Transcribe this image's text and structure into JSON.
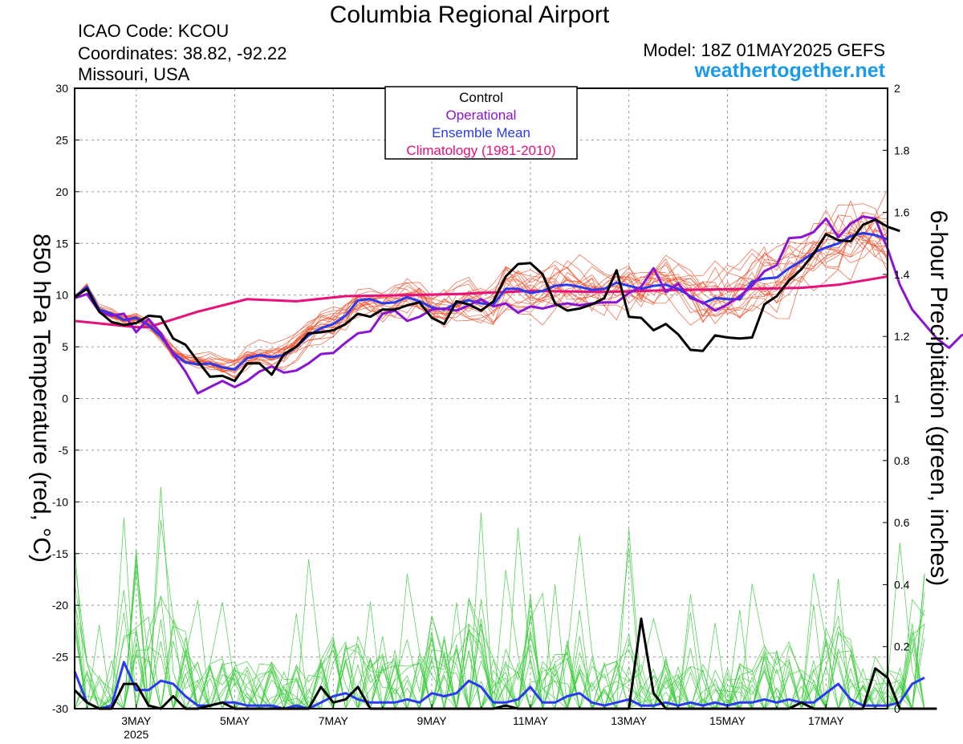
{
  "header": {
    "title": "Columbia Regional Airport",
    "icao": "ICAO Code: KCOU",
    "coordinates": "Coordinates: 38.82, -92.22",
    "region": "Missouri, USA",
    "model": "Model: 18Z 01MAY2025 GEFS",
    "website": "weathertogether.net"
  },
  "chart_data": {
    "type": "line",
    "title": "Columbia Regional Airport",
    "xlabel": "",
    "ylabel": "850 hPa Temperature (red, °C)",
    "ylabel_right": "6-hour Precipitation (green, inches)",
    "x_range_hours": [
      0,
      396
    ],
    "ylim_left": [
      -30,
      30
    ],
    "ylim_right": [
      0,
      2
    ],
    "yticks_left": [
      "30",
      "25",
      "20",
      "15",
      "10",
      "5",
      "0",
      "-5",
      "-10",
      "-15",
      "-20",
      "-25",
      "-30"
    ],
    "yticks_right": [
      "2",
      "1.8",
      "1.6",
      "1.4",
      "1.2",
      "1",
      "0.8",
      "0.6",
      "0.4",
      "0.2",
      "0"
    ],
    "xticks": [
      {
        "label": "3MAY",
        "hour": 30
      },
      {
        "label": "5MAY",
        "hour": 78
      },
      {
        "label": "7MAY",
        "hour": 126
      },
      {
        "label": "9MAY",
        "hour": 174
      },
      {
        "label": "11MAY",
        "hour": 222
      },
      {
        "label": "13MAY",
        "hour": 270
      },
      {
        "label": "15MAY",
        "hour": 318
      },
      {
        "label": "17MAY",
        "hour": 366
      }
    ],
    "year_label": "2025",
    "grid": true,
    "legend": {
      "placement": "top-center",
      "entries": [
        {
          "label": "Control",
          "color": "#000000"
        },
        {
          "label": "Operational",
          "color": "#8a14d2"
        },
        {
          "label": "Ensemble Mean",
          "color": "#2a3af0"
        },
        {
          "label": "Climatology (1981-2010)",
          "color": "#e8107a"
        }
      ]
    },
    "colors": {
      "control": "#000000",
      "operational": "#8a14d2",
      "mean": "#2a3af0",
      "climatology": "#e8107a",
      "members_temp": "#f0502a",
      "members_precip": "#3ccc3c",
      "grid": "#9a9a9a"
    },
    "temperature": {
      "hours_start": 0,
      "hours_step": 6,
      "control": [
        9.8,
        10.6,
        8.4,
        7.4,
        7.1,
        7.3,
        8.0,
        7.9,
        5.8,
        5.2,
        3.6,
        2.1,
        2.2,
        1.7,
        3.4,
        3.4,
        2.3,
        4.3,
        5.0,
        6.3,
        6.4,
        6.6,
        7.2,
        8.2,
        7.9,
        8.6,
        8.6,
        9.0,
        9.3,
        7.8,
        7.2,
        9.4,
        9.1,
        8.5,
        9.4,
        11.8,
        13.0,
        13.1,
        12.0,
        9.2,
        8.5,
        8.7,
        9.1,
        9.7,
        12.4,
        7.9,
        7.8,
        6.6,
        7.2,
        6.2,
        4.7,
        4.6,
        6.1,
        5.9,
        5.8,
        5.9,
        9.1,
        9.9,
        11.4,
        12.5,
        14.0,
        15.9,
        15.3,
        15.2,
        16.8,
        17.3,
        16.6,
        16.2
      ],
      "operational": [
        9.7,
        10.1,
        8.4,
        8.0,
        8.2,
        6.4,
        7.7,
        6.3,
        4.3,
        2.6,
        0.5,
        1.1,
        1.7,
        1.1,
        1.7,
        2.6,
        3.1,
        2.5,
        2.7,
        3.4,
        4.3,
        4.4,
        5.4,
        6.3,
        6.5,
        8.2,
        8.5,
        7.5,
        7.9,
        8.6,
        8.7,
        8.5,
        9.0,
        9.6,
        8.9,
        9.2,
        8.3,
        8.9,
        8.7,
        9.0,
        9.2,
        9.0,
        9.2,
        9.3,
        9.3,
        10.2,
        10.8,
        12.6,
        10.3,
        11.1,
        9.7,
        9.3,
        8.5,
        9.1,
        9.9,
        10.9,
        12.3,
        12.9,
        15.5,
        15.6,
        16.1,
        17.4,
        15.6,
        16.9,
        17.6,
        17.4,
        14.5,
        11.0,
        8.6,
        7.2,
        5.8,
        4.9,
        6.1,
        6.5
      ],
      "mean": [
        9.8,
        10.8,
        8.6,
        8.2,
        7.6,
        7.8,
        7.1,
        6.0,
        4.4,
        3.5,
        3.3,
        3.4,
        3.0,
        2.8,
        3.9,
        4.2,
        4.0,
        4.2,
        5.0,
        6.1,
        6.8,
        7.2,
        8.0,
        9.5,
        9.6,
        9.2,
        9.3,
        9.8,
        9.4,
        8.8,
        8.6,
        9.2,
        9.5,
        9.2,
        9.1,
        10.6,
        10.6,
        10.2,
        10.4,
        10.9,
        11.0,
        10.8,
        10.5,
        10.6,
        11.2,
        10.9,
        10.6,
        10.9,
        11.0,
        10.6,
        9.9,
        9.2,
        9.7,
        9.6,
        9.6,
        11.3,
        11.6,
        11.7,
        12.6,
        13.3,
        14.1,
        14.6,
        15.0,
        15.7,
        16.0,
        15.8,
        15.4
      ],
      "climatology": [
        [
          0,
          7.5
        ],
        [
          30,
          6.9
        ],
        [
          36,
          6.9
        ],
        [
          60,
          8.4
        ],
        [
          84,
          9.6
        ],
        [
          108,
          9.4
        ],
        [
          132,
          9.9
        ],
        [
          162,
          10.0
        ],
        [
          186,
          10.1
        ],
        [
          222,
          10.4
        ],
        [
          258,
          10.3
        ],
        [
          294,
          10.5
        ],
        [
          330,
          10.6
        ],
        [
          354,
          10.7
        ],
        [
          372,
          11.0
        ],
        [
          396,
          11.8
        ]
      ]
    },
    "precipitation": {
      "hours_start": 0,
      "hours_step": 6,
      "control": [
        0.06,
        0.02,
        0.0,
        0.0,
        0.08,
        0.08,
        0.01,
        0.0,
        0.04,
        0.0,
        0.0,
        0.01,
        0.02,
        0.0,
        0.0,
        0.0,
        0.0,
        0.0,
        0.0,
        0.0,
        0.07,
        0.02,
        0.03,
        0.07,
        0.0,
        0.0,
        0.0,
        0.0,
        0.0,
        0.0,
        0.0,
        0.0,
        0.0,
        0.0,
        0.0,
        0.01,
        0.0,
        0.0,
        0.0,
        0.0,
        0.0,
        0.0,
        0.0,
        0.0,
        0.0,
        0.0,
        0.29,
        0.05,
        0.0,
        0.0,
        0.0,
        0.0,
        0.0,
        0.0,
        0.0,
        0.0,
        0.0,
        0.0,
        0.0,
        0.02,
        0.0,
        0.0,
        0.0,
        0.0,
        0.0,
        0.13,
        0.1,
        0.0,
        0.0,
        0.0,
        0.0
      ],
      "mean": [
        0.12,
        0.02,
        0.0,
        0.01,
        0.15,
        0.06,
        0.06,
        0.09,
        0.08,
        0.04,
        0.01,
        0.01,
        0.02,
        0.02,
        0.01,
        0.01,
        0.01,
        0.0,
        0.01,
        0.0,
        0.02,
        0.04,
        0.05,
        0.03,
        0.02,
        0.02,
        0.02,
        0.03,
        0.02,
        0.05,
        0.04,
        0.05,
        0.09,
        0.07,
        0.02,
        0.02,
        0.03,
        0.07,
        0.02,
        0.02,
        0.04,
        0.05,
        0.02,
        0.01,
        0.02,
        0.03,
        0.01,
        0.01,
        0.02,
        0.01,
        0.02,
        0.01,
        0.02,
        0.01,
        0.02,
        0.02,
        0.03,
        0.02,
        0.03,
        0.02,
        0.02,
        0.05,
        0.08,
        0.03,
        0.01,
        0.01,
        0.01,
        0.02,
        0.08,
        0.1
      ]
    }
  }
}
